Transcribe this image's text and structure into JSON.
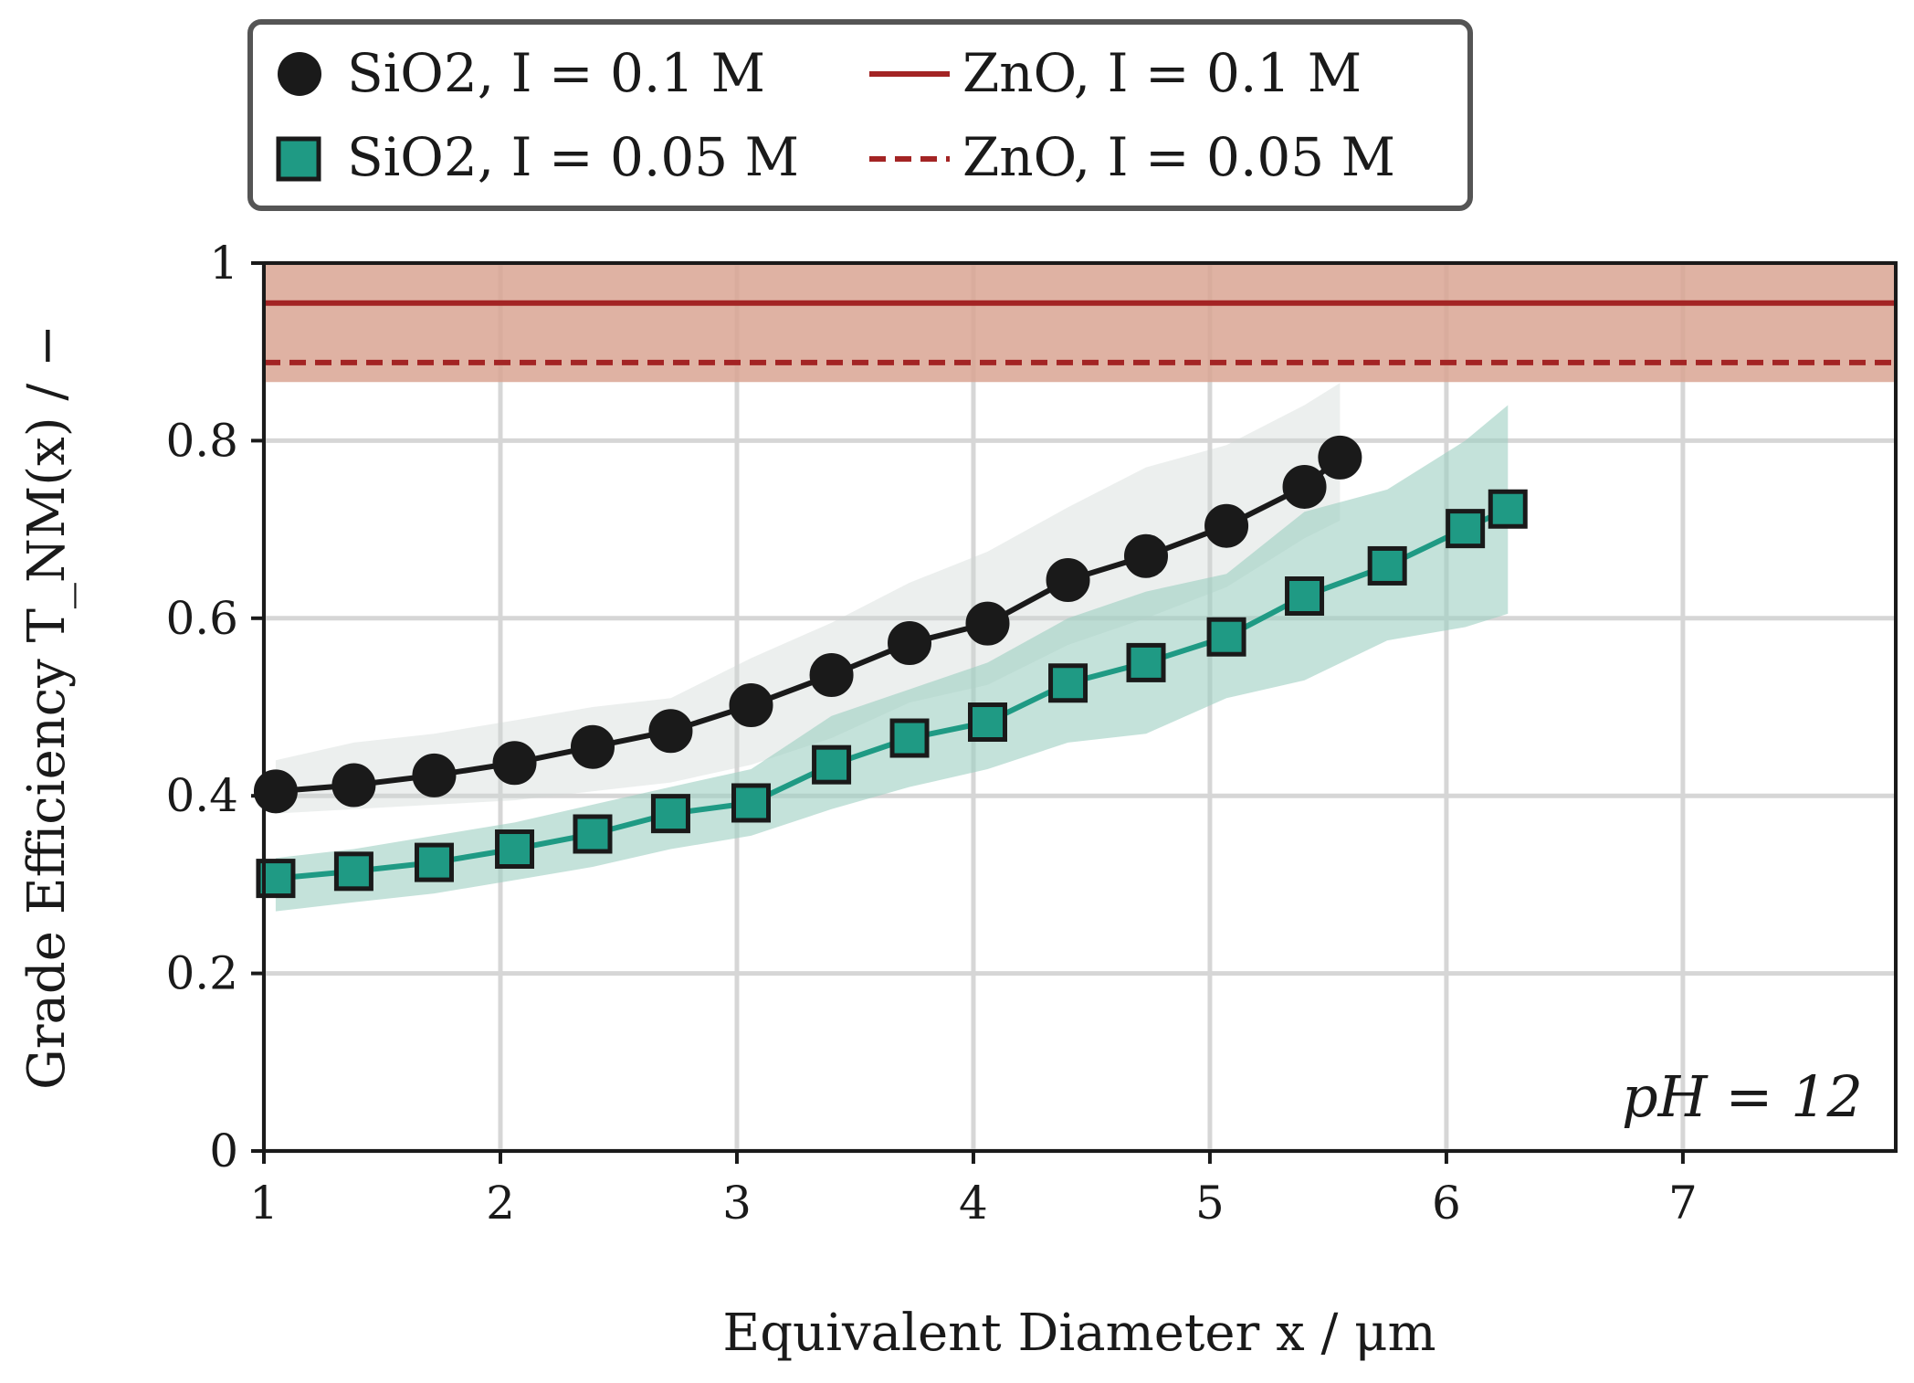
{
  "chart_data": {
    "type": "line",
    "xlabel": "Equivalent Diameter x / μm",
    "ylabel": "Grade Efficiency T_NM(x) / −",
    "xlim": [
      1,
      7.9
    ],
    "ylim": [
      0,
      1
    ],
    "xticks": [
      1,
      2,
      3,
      4,
      5,
      6,
      7
    ],
    "yticks": [
      0,
      0.2,
      0.4,
      0.6,
      0.8,
      1
    ],
    "ytick_labels": [
      "0",
      "0.2",
      "0.4",
      "0.6",
      "0.8",
      "1"
    ],
    "grid": true,
    "annotation": "pH = 12",
    "legend": {
      "placement": "top, above plot",
      "columns": 2
    },
    "series": [
      {
        "name": "SiO2, I = 0.1 M",
        "marker": "circle",
        "color": "#1a1a1a",
        "band_color": "#cfd6d4",
        "x": [
          1.05,
          1.38,
          1.72,
          2.06,
          2.39,
          2.72,
          3.06,
          3.4,
          3.73,
          4.06,
          4.4,
          4.73,
          5.07,
          5.4,
          5.55
        ],
        "y": [
          0.405,
          0.412,
          0.423,
          0.437,
          0.455,
          0.473,
          0.502,
          0.536,
          0.572,
          0.594,
          0.643,
          0.67,
          0.704,
          0.748,
          0.781
        ],
        "band_lower": [
          0.38,
          0.385,
          0.39,
          0.395,
          0.405,
          0.415,
          0.435,
          0.465,
          0.505,
          0.525,
          0.57,
          0.6,
          0.635,
          0.69,
          0.71
        ],
        "band_upper": [
          0.44,
          0.46,
          0.47,
          0.485,
          0.5,
          0.51,
          0.555,
          0.595,
          0.64,
          0.675,
          0.725,
          0.77,
          0.795,
          0.84,
          0.865
        ]
      },
      {
        "name": "SiO2, I = 0.05 M",
        "marker": "square",
        "color": "#1f9a84",
        "band_color": "#9ccfc1",
        "x": [
          1.05,
          1.38,
          1.72,
          2.06,
          2.39,
          2.72,
          3.06,
          3.4,
          3.73,
          4.06,
          4.4,
          4.73,
          5.07,
          5.4,
          5.75,
          6.08,
          6.26
        ],
        "y": [
          0.307,
          0.315,
          0.325,
          0.34,
          0.357,
          0.38,
          0.392,
          0.435,
          0.465,
          0.483,
          0.527,
          0.55,
          0.579,
          0.625,
          0.659,
          0.701,
          0.723
        ],
        "band_lower": [
          0.27,
          0.28,
          0.29,
          0.305,
          0.32,
          0.34,
          0.355,
          0.385,
          0.41,
          0.43,
          0.46,
          0.47,
          0.51,
          0.53,
          0.575,
          0.59,
          0.605
        ],
        "band_upper": [
          0.33,
          0.34,
          0.355,
          0.37,
          0.39,
          0.41,
          0.43,
          0.49,
          0.52,
          0.55,
          0.6,
          0.63,
          0.65,
          0.72,
          0.745,
          0.8,
          0.84
        ]
      },
      {
        "name": "ZnO, I = 0.1 M",
        "style": "solid",
        "color": "#a32424",
        "y_constant": 0.955
      },
      {
        "name": "ZnO, I = 0.05 M",
        "style": "dashed",
        "color": "#a32424",
        "y_constant": 0.888
      }
    ],
    "zno_band": {
      "lower": 0.866,
      "upper": 1.0,
      "color": "#d9a593"
    }
  }
}
